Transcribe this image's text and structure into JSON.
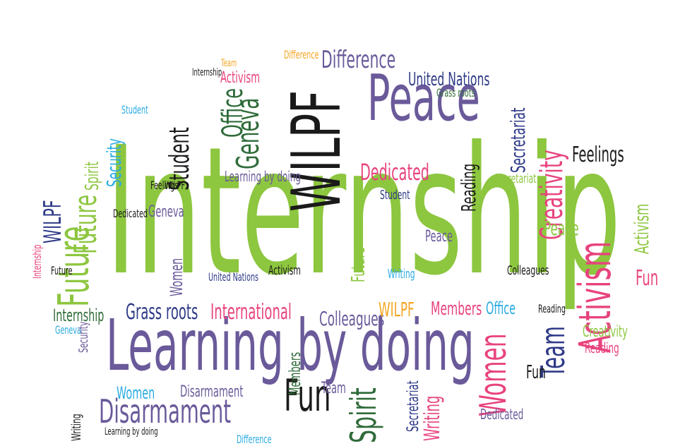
{
  "words": {
    "internship": "Internship",
    "learning_by_doing": "Learning by doing",
    "wilpf": "WILPF",
    "peace": "Peace",
    "future": "Future",
    "activism": "Activism",
    "women": "Women",
    "geneva": "Geneva",
    "student": "Student",
    "office": "Office",
    "difference": "Difference",
    "united_nations": "United Nations",
    "team": "Team",
    "fun": "Fun",
    "spirit": "Spirit",
    "disarmament": "Disarmament",
    "dedicated": "Dedicated",
    "creativity": "Creativity",
    "secretariat": "Secretariat",
    "feelings": "Feelings",
    "security": "Security",
    "international": "International",
    "colleagues": "Colleagues",
    "grass_roots": "Grass roots",
    "members": "Members",
    "writing": "Writing",
    "reading": "Reading"
  },
  "colors": {
    "green": "#8dc63f",
    "purple": "#6a5a9a",
    "black": "#1a1a1a",
    "navy": "#2e3a87",
    "pink": "#e8437e",
    "orange": "#f5a623",
    "cyan": "#29abe2",
    "dark_green": "#2f6b3a"
  }
}
